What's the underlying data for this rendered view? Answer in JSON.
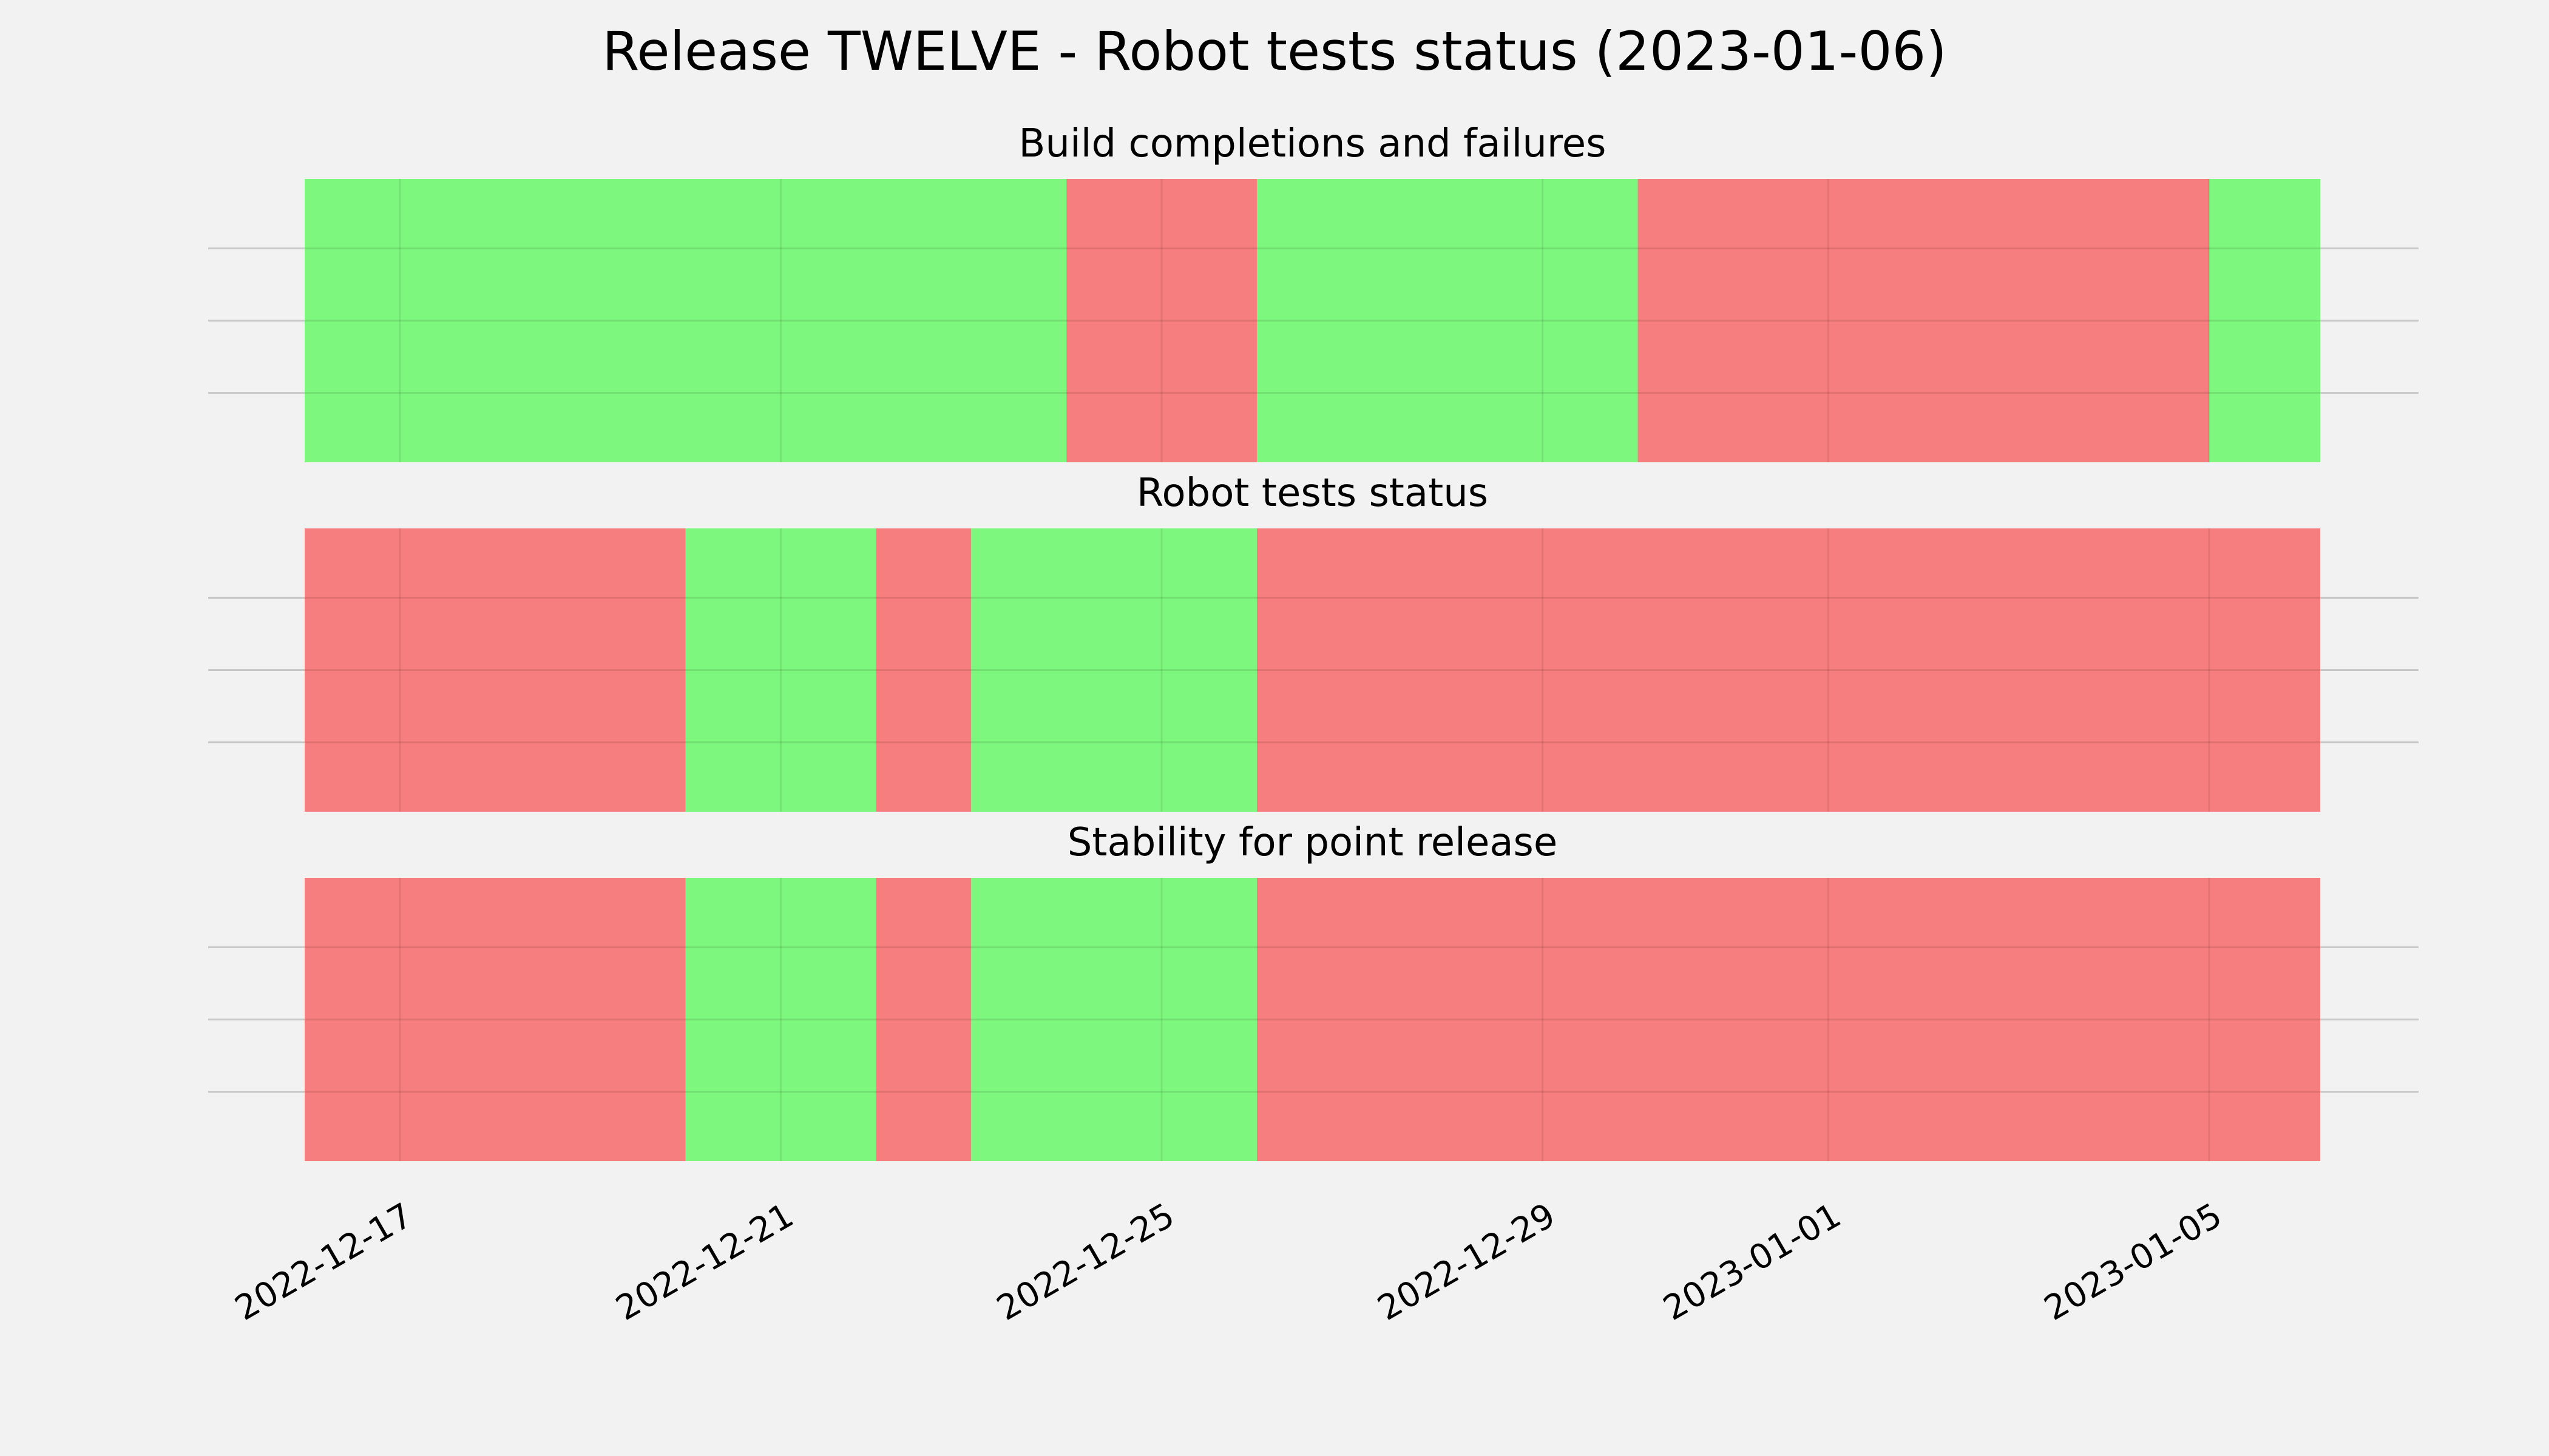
{
  "chart_data": {
    "type": "timeline",
    "title": "Release TWELVE - Robot tests status (2023-01-06)",
    "x_range": [
      "2022-12-16",
      "2023-01-06T04:00"
    ],
    "x_ticks": [
      "2022-12-17",
      "2022-12-21",
      "2022-12-25",
      "2022-12-29",
      "2023-01-01",
      "2023-01-05"
    ],
    "status_colors": {
      "pass": "#77f777",
      "fail": "#f77777"
    },
    "grid": true,
    "panels": [
      {
        "title": "Build completions and failures",
        "segments": [
          {
            "start": "2022-12-16",
            "end": "2022-12-24",
            "status": "pass"
          },
          {
            "start": "2022-12-24",
            "end": "2022-12-26",
            "status": "fail"
          },
          {
            "start": "2022-12-26",
            "end": "2022-12-30",
            "status": "pass"
          },
          {
            "start": "2022-12-30",
            "end": "2023-01-05",
            "status": "fail"
          },
          {
            "start": "2023-01-05",
            "end": "2023-01-06T16:00",
            "status": "pass"
          }
        ]
      },
      {
        "title": "Robot tests status",
        "segments": [
          {
            "start": "2022-12-16",
            "end": "2022-12-20",
            "status": "fail"
          },
          {
            "start": "2022-12-20",
            "end": "2022-12-22",
            "status": "pass"
          },
          {
            "start": "2022-12-22",
            "end": "2022-12-23",
            "status": "fail"
          },
          {
            "start": "2022-12-23",
            "end": "2022-12-26",
            "status": "pass"
          },
          {
            "start": "2022-12-26",
            "end": "2023-01-06T16:00",
            "status": "fail"
          }
        ]
      },
      {
        "title": "Stability for point release",
        "segments": [
          {
            "start": "2022-12-16",
            "end": "2022-12-20",
            "status": "fail"
          },
          {
            "start": "2022-12-20",
            "end": "2022-12-22",
            "status": "pass"
          },
          {
            "start": "2022-12-22",
            "end": "2022-12-23",
            "status": "fail"
          },
          {
            "start": "2022-12-23",
            "end": "2022-12-26",
            "status": "pass"
          },
          {
            "start": "2022-12-26",
            "end": "2023-01-06T16:00",
            "status": "fail"
          }
        ]
      }
    ]
  }
}
